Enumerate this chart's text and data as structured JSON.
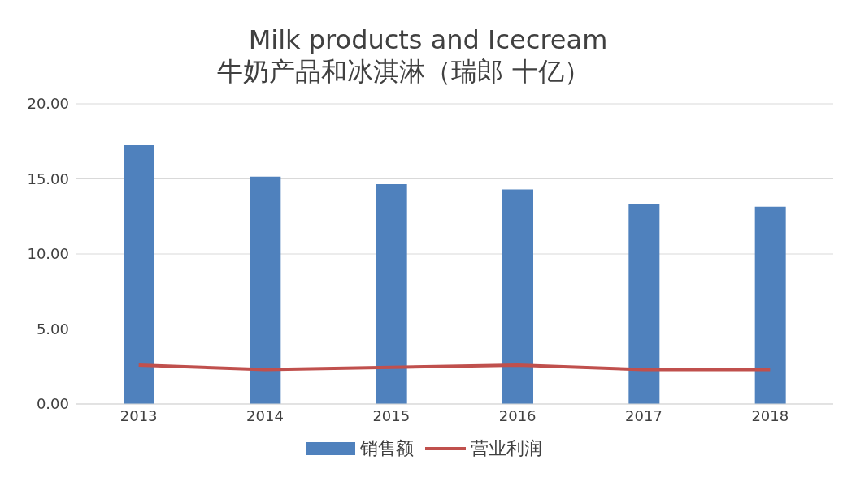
{
  "chart_data": {
    "type": "bar",
    "title": "Milk products and Icecream",
    "subtitle": "牛奶产品和冰淇淋（瑞郎 十亿）",
    "categories": [
      "2013",
      "2014",
      "2015",
      "2016",
      "2017",
      "2018"
    ],
    "series": [
      {
        "name": "销售额",
        "color": "#4f81bd",
        "values": [
          17.25,
          15.15,
          14.65,
          14.3,
          13.35,
          13.15
        ]
      },
      {
        "name": "营业利润",
        "type": "line",
        "color": "#c0504d",
        "values": [
          2.6,
          2.3,
          2.45,
          2.6,
          2.3,
          2.3
        ]
      }
    ],
    "ylim": [
      0,
      20
    ],
    "yticks": [
      {
        "value": 0,
        "label": "0.00"
      },
      {
        "value": 5,
        "label": "5.00"
      },
      {
        "value": 10,
        "label": "10.00"
      },
      {
        "value": 15,
        "label": "15.00"
      },
      {
        "value": 20,
        "label": "20.00"
      }
    ],
    "grid": "y",
    "legend": "bottom",
    "marker": "none"
  }
}
